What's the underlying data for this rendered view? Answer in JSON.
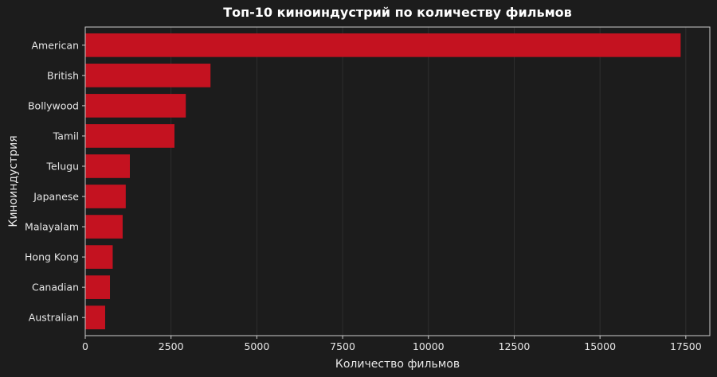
{
  "chart_data": {
    "type": "bar",
    "orientation": "horizontal",
    "title": "Топ-10 киноиндустрий по количеству фильмов",
    "xlabel": "Количество фильмов",
    "ylabel": "Киноиндустрия",
    "categories": [
      "American",
      "British",
      "Bollywood",
      "Tamil",
      "Telugu",
      "Japanese",
      "Malayalam",
      "Hong Kong",
      "Canadian",
      "Australian"
    ],
    "values": [
      17350,
      3650,
      2930,
      2600,
      1300,
      1180,
      1090,
      800,
      720,
      580
    ],
    "xlim": [
      0,
      18200
    ],
    "xticks": [
      0,
      2500,
      5000,
      7500,
      10000,
      12500,
      15000,
      17500
    ],
    "xtick_labels": [
      "0",
      "2500",
      "5000",
      "7500",
      "10000",
      "12500",
      "15000",
      "17500"
    ],
    "grid": true,
    "colors": {
      "background": "#1c1c1c",
      "bar": "#c41220",
      "axes": "#cccccc",
      "grid": "#333333",
      "text": "#e6e6e6"
    }
  }
}
